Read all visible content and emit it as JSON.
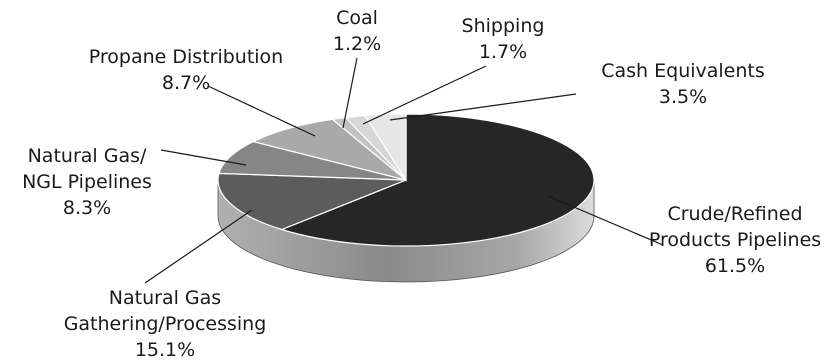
{
  "chart_data": {
    "type": "pie",
    "title": "",
    "legend": "none",
    "slices": [
      {
        "label": [
          "Crude/Refined",
          "Products Pipelines"
        ],
        "pct_text": "61.5%",
        "value": 61.5,
        "color": "#262626"
      },
      {
        "label": [
          "Natural Gas",
          "Gathering/Processing"
        ],
        "pct_text": "15.1%",
        "value": 15.1,
        "color": "#5c5c5c"
      },
      {
        "label": [
          "Natural Gas/",
          "NGL Pipelines"
        ],
        "pct_text": "8.3%",
        "value": 8.3,
        "color": "#868686"
      },
      {
        "label": [
          "Propane Distribution"
        ],
        "pct_text": "8.7%",
        "value": 8.7,
        "color": "#a9a9a9"
      },
      {
        "label": [
          "Coal"
        ],
        "pct_text": "1.2%",
        "value": 1.2,
        "color": "#c2c2c2"
      },
      {
        "label": [
          "Shipping"
        ],
        "pct_text": "1.7%",
        "value": 1.7,
        "color": "#d6d6d6"
      },
      {
        "label": [
          "Cash Equivalents"
        ],
        "pct_text": "3.5%",
        "value": 3.5,
        "color": "#e6e6e6"
      }
    ]
  }
}
